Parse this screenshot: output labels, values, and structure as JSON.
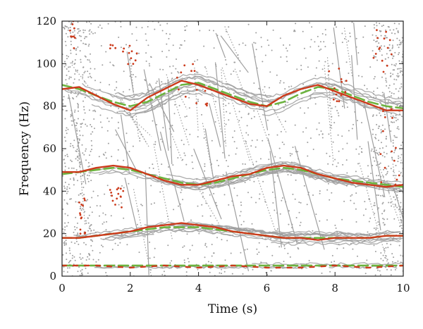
{
  "chart_data": {
    "type": "scatter",
    "title": "",
    "xlabel": "Time (s)",
    "ylabel": "Frequency (Hz)",
    "xlim": [
      0,
      10
    ],
    "ylim": [
      0,
      120
    ],
    "xticks": [
      0,
      2,
      4,
      6,
      8,
      10
    ],
    "yticks": [
      0,
      20,
      40,
      60,
      80,
      100,
      120
    ],
    "grid": false,
    "legend": "none",
    "colors": {
      "background_tracks": "#9e9e9e",
      "estimated_track": "#cc3a1b",
      "reference_track": "#6cb33f"
    },
    "series": [
      {
        "style": "reference",
        "x": [
          0,
          0.5,
          1,
          1.5,
          2,
          2.5,
          3,
          3.5,
          4,
          4.5,
          5,
          5.5,
          6,
          6.5,
          7,
          7.5,
          8,
          8.5,
          9,
          9.5,
          10
        ],
        "y": [
          90,
          88,
          85,
          82,
          80,
          82,
          86,
          90,
          91,
          88,
          85,
          82,
          80,
          82,
          86,
          89,
          88,
          85,
          82,
          80,
          79
        ]
      },
      {
        "style": "estimated",
        "x": [
          0,
          0.5,
          1,
          1.5,
          2,
          2.5,
          3,
          3.5,
          4,
          4.5,
          5,
          5.5,
          6,
          6.5,
          7,
          7.5,
          8,
          8.5,
          9,
          9.5,
          10
        ],
        "y": [
          88,
          89,
          85,
          81,
          78,
          84,
          88,
          92,
          90,
          87,
          84,
          81,
          80,
          85,
          88,
          90,
          87,
          84,
          81,
          78,
          78
        ]
      },
      {
        "style": "reference",
        "x": [
          0,
          0.5,
          1,
          1.5,
          2,
          2.5,
          3,
          3.5,
          4,
          4.5,
          5,
          5.5,
          6,
          6.5,
          7,
          7.5,
          8,
          8.5,
          9,
          9.5,
          10
        ],
        "y": [
          48,
          49,
          50,
          51,
          50,
          48,
          46,
          44,
          43,
          44,
          46,
          48,
          50,
          51,
          50,
          48,
          46,
          45,
          44,
          43,
          42
        ]
      },
      {
        "style": "estimated",
        "x": [
          0,
          0.5,
          1,
          1.5,
          2,
          2.5,
          3,
          3.5,
          4,
          4.5,
          5,
          5.5,
          6,
          6.5,
          7,
          7.5,
          8,
          8.5,
          9,
          9.5,
          10
        ],
        "y": [
          49,
          49,
          51,
          52,
          51,
          48,
          45,
          43,
          43,
          45,
          47,
          48,
          51,
          52,
          51,
          48,
          46,
          44,
          43,
          42,
          43
        ]
      },
      {
        "style": "reference",
        "x": [
          0,
          0.5,
          1,
          1.5,
          2,
          2.5,
          3,
          3.5,
          4,
          4.5,
          5,
          5.5,
          6,
          6.5,
          7,
          7.5,
          8,
          8.5,
          9,
          9.5,
          10
        ],
        "y": [
          18,
          18,
          19,
          20,
          21,
          22,
          23,
          23,
          23,
          22,
          21,
          20,
          19,
          18,
          18,
          18,
          18,
          18,
          18,
          19,
          19
        ]
      },
      {
        "style": "estimated",
        "x": [
          0,
          0.5,
          1,
          1.5,
          2,
          2.5,
          3,
          3.5,
          4,
          4.5,
          5,
          5.5,
          6,
          6.5,
          7,
          7.5,
          8,
          8.5,
          9,
          9.5,
          10
        ],
        "y": [
          18,
          18,
          19,
          20,
          21,
          23,
          24,
          25,
          24,
          23,
          21,
          20,
          19,
          18,
          18,
          17,
          18,
          18,
          18,
          19,
          19
        ]
      },
      {
        "style": "reference",
        "x": [
          0,
          1,
          2,
          3,
          4,
          5,
          6,
          7,
          8,
          9,
          10
        ],
        "y": [
          5,
          5,
          5,
          5,
          5,
          5,
          5,
          5,
          5,
          5,
          5
        ]
      },
      {
        "style": "estimated",
        "x": [
          0,
          1,
          2,
          3,
          4,
          5,
          6,
          7,
          8,
          9,
          10
        ],
        "y": [
          5,
          5,
          4,
          5,
          4,
          5,
          4,
          4,
          5,
          4,
          5
        ]
      }
    ]
  }
}
